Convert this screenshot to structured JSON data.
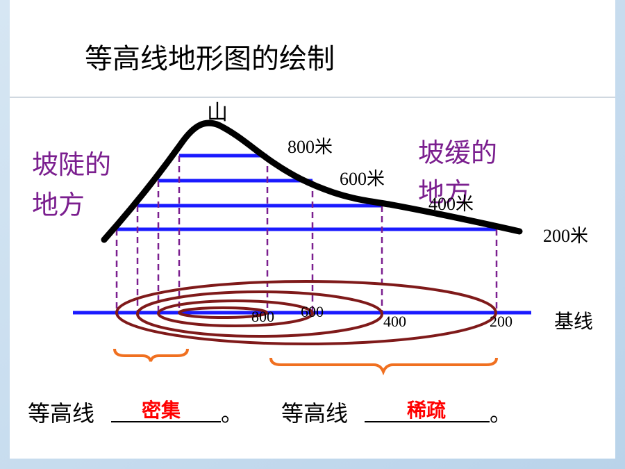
{
  "title": "等高线地形图的绘制",
  "peak_label": "山",
  "steep_note": [
    "坡陡的",
    "地方"
  ],
  "gentle_note": [
    "坡缓的",
    "地方"
  ],
  "elevation_labels": [
    "800米",
    "600米",
    "400米",
    "200米"
  ],
  "baseline_marks": [
    "800",
    "600",
    "400",
    "200"
  ],
  "baseline_label": "基线",
  "conclusions": [
    {
      "prefix": "等高线",
      "answer": "密集",
      "end": "。"
    },
    {
      "prefix": "等高线",
      "answer": "稀疏",
      "end": "。"
    }
  ]
}
